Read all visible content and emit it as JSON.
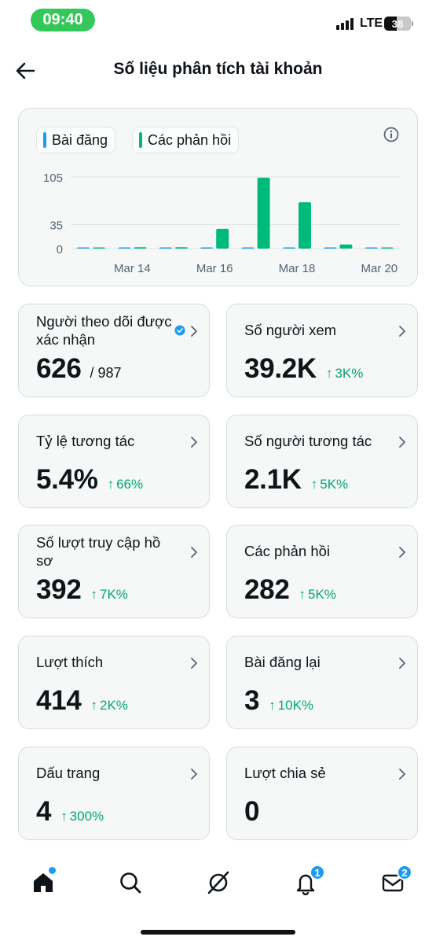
{
  "status_bar": {
    "time": "09:40",
    "network": "LTE",
    "battery": "38"
  },
  "header": {
    "title": "Số liệu phân tích tài khoản"
  },
  "chart_card": {
    "legend": [
      {
        "label": "Bài đăng",
        "color": "#1d9bf0"
      },
      {
        "label": "Các phản hồi",
        "color": "#00ba7c"
      }
    ]
  },
  "chart_data": {
    "type": "bar",
    "categories": [
      "Mar 13",
      "Mar 14",
      "Mar 15",
      "Mar 16",
      "Mar 17",
      "Mar 18",
      "Mar 19",
      "Mar 20"
    ],
    "x_tick_labels": [
      "Mar 14",
      "Mar 16",
      "Mar 18",
      "Mar 20"
    ],
    "y_tick_labels": [
      "105",
      "35",
      "0"
    ],
    "ylim": [
      0,
      105
    ],
    "grid": true,
    "series": [
      {
        "name": "Bài đăng",
        "color": "#1d9bf0",
        "values": [
          0,
          0,
          0,
          0,
          1,
          1,
          1,
          0
        ]
      },
      {
        "name": "Các phản hồi",
        "color": "#00ba7c",
        "values": [
          1,
          2,
          2,
          29,
          104,
          68,
          6,
          0
        ]
      }
    ]
  },
  "metrics": [
    {
      "label": "Người theo dõi được xác nhận",
      "value": "626",
      "sub": "/ 987",
      "change": "",
      "verified": true
    },
    {
      "label": "Số người xem",
      "value": "39.2K",
      "sub": "",
      "change": "3K%"
    },
    {
      "label": "Tỷ lệ tương tác",
      "value": "5.4%",
      "sub": "",
      "change": "66%"
    },
    {
      "label": "Số người tương tác",
      "value": "2.1K",
      "sub": "",
      "change": "5K%"
    },
    {
      "label": "Số lượt truy cập hồ sơ",
      "value": "392",
      "sub": "",
      "change": "7K%"
    },
    {
      "label": "Các phản hồi",
      "value": "282",
      "sub": "",
      "change": "5K%"
    },
    {
      "label": "Lượt thích",
      "value": "414",
      "sub": "",
      "change": "2K%"
    },
    {
      "label": "Bài đăng lại",
      "value": "3",
      "sub": "",
      "change": "10K%"
    },
    {
      "label": "Dấu trang",
      "value": "4",
      "sub": "",
      "change": "300%"
    },
    {
      "label": "Lượt chia sẻ",
      "value": "0",
      "sub": "",
      "change": ""
    }
  ],
  "bottom_nav": {
    "items": [
      {
        "icon": "home-icon"
      },
      {
        "icon": "search-icon"
      },
      {
        "icon": "grok-icon"
      },
      {
        "icon": "bell-icon",
        "badge": "1"
      },
      {
        "icon": "mail-icon",
        "badge": "2"
      }
    ]
  }
}
